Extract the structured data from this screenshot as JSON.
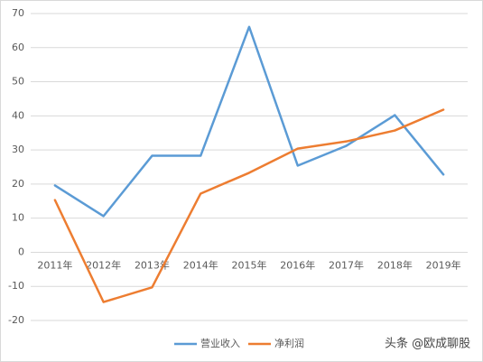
{
  "chart_data": {
    "type": "line",
    "categories": [
      "2011年",
      "2012年",
      "2013年",
      "2014年",
      "2015年",
      "2016年",
      "2017年",
      "2018年",
      "2019年"
    ],
    "series": [
      {
        "name": "营业收入",
        "color": "#5b9bd5",
        "values": [
          19.6,
          10.6,
          28.3,
          28.3,
          66.1,
          25.4,
          31.2,
          40.2,
          22.8
        ]
      },
      {
        "name": "净利润",
        "color": "#ed7d31",
        "values": [
          15.3,
          -14.6,
          -10.3,
          17.2,
          23.3,
          30.4,
          32.5,
          35.7,
          41.8
        ]
      }
    ],
    "ylim": [
      -20,
      70
    ],
    "yticks": [
      -20,
      -10,
      0,
      10,
      20,
      30,
      40,
      50,
      60,
      70
    ],
    "grid": true,
    "watermark": "头条 @欧成聊股"
  }
}
